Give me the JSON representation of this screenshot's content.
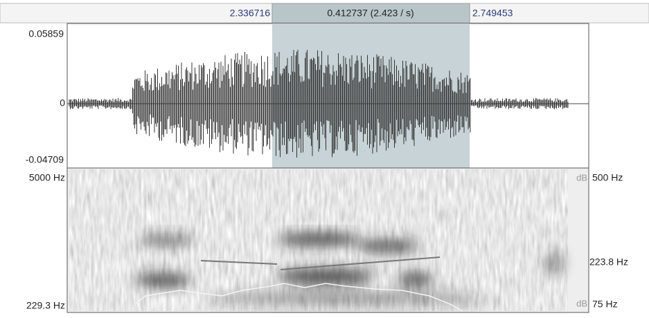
{
  "selection": {
    "start": "2.336716",
    "duration": "0.412737 (2.423 / s)",
    "end": "2.749453"
  },
  "waveform_axis": {
    "max": "0.05859",
    "zero": "0",
    "min": "-0.04709"
  },
  "spectrogram_axis": {
    "top": "5000 Hz",
    "bottom": "229.3 Hz"
  },
  "pitch_axis": {
    "top": "500 Hz",
    "value": "223.8 Hz",
    "bottom": "75 Hz"
  },
  "intensity_units": [
    "dB",
    "dB"
  ]
}
